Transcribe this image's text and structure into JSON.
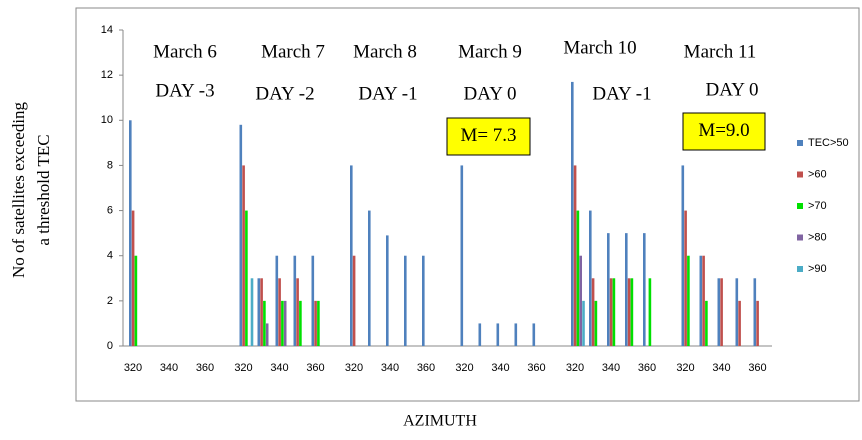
{
  "chart_data": {
    "type": "bar",
    "ylabel": [
      "No of satellites  exceeding",
      "a  threshold TEC"
    ],
    "xlabel": "AZIMUTH",
    "categories": [
      "320",
      null,
      "340",
      null,
      "360",
      "320",
      null,
      "340",
      null,
      "360",
      "320",
      null,
      "340",
      null,
      "360",
      "320",
      null,
      "340",
      null,
      "360",
      "320",
      null,
      "340",
      null,
      "360",
      "320",
      null,
      "340",
      null,
      "360"
    ],
    "series": [
      {
        "name": "TEC>50",
        "color": "#4f81bd",
        "values": [
          10,
          0,
          0,
          0,
          0,
          9.8,
          3,
          4,
          4,
          4,
          8,
          6,
          4.9,
          4,
          4,
          8,
          1,
          1,
          1,
          1,
          11.7,
          6,
          5,
          5,
          5,
          8,
          4,
          3,
          3,
          3
        ]
      },
      {
        "name": ">60",
        "color": "#c0504d",
        "values": [
          6,
          0,
          0,
          0,
          0,
          8,
          3,
          3,
          3,
          2,
          4,
          0,
          0,
          0,
          0,
          0,
          0,
          0,
          0,
          0,
          8,
          3,
          3,
          3,
          0,
          6,
          4,
          3,
          2,
          2
        ]
      },
      {
        "name": ">70",
        "color": "#00e000",
        "values": [
          4,
          0,
          0,
          0,
          0,
          6,
          2,
          2,
          2,
          2,
          0,
          0,
          0,
          0,
          0,
          0,
          0,
          0,
          0,
          0,
          6,
          2,
          3,
          3,
          3,
          4,
          2,
          0,
          0,
          0
        ]
      },
      {
        "name": ">80",
        "color": "#8064a2",
        "values": [
          0,
          0,
          0,
          0,
          0,
          0,
          1,
          2,
          0,
          0,
          0,
          0,
          0,
          0,
          0,
          0,
          0,
          0,
          0,
          0,
          4,
          0,
          0,
          0,
          0,
          0,
          0,
          0,
          0,
          0
        ]
      },
      {
        "name": ">90",
        "color": "#4bacc6",
        "values": [
          0,
          0,
          0,
          0,
          0,
          3,
          0,
          0,
          0,
          0,
          0,
          0,
          0,
          0,
          0,
          0,
          0,
          0,
          0,
          0,
          2,
          0,
          0,
          0,
          0,
          0,
          0,
          0,
          0,
          0
        ]
      }
    ],
    "ylim": [
      0,
      14
    ],
    "yticks": [
      0,
      2,
      4,
      6,
      8,
      10,
      12,
      14
    ],
    "annotations": [
      "March 6",
      "DAY -3",
      "March 7",
      "DAY -2",
      "March  8",
      "DAY -1",
      "March 9",
      "DAY    0",
      "March 10",
      "DAY -1",
      "March  11",
      "DAY    0"
    ],
    "boxes": [
      "M= 7.3",
      "M=9.0"
    ],
    "legend": "right"
  }
}
